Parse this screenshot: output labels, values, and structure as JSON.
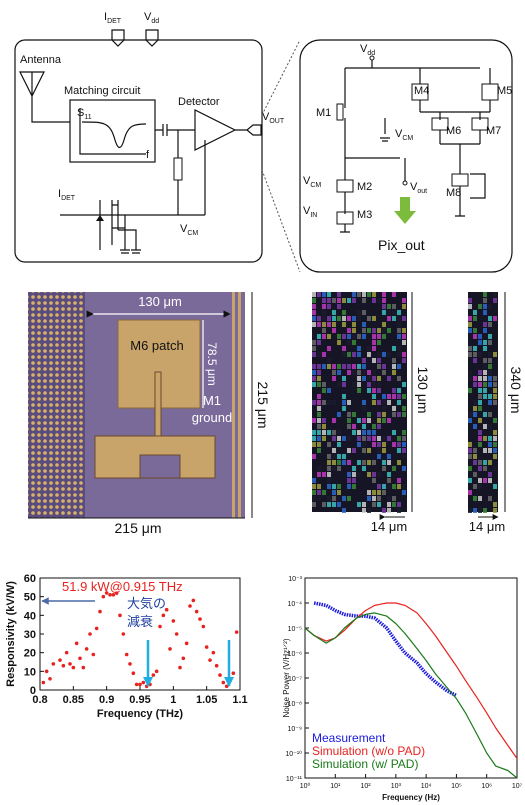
{
  "schematic": {
    "idet_top": {
      "main": "I",
      "sub": "DET"
    },
    "vdd_top": {
      "main": "V",
      "sub": "dd"
    },
    "antenna": "Antenna",
    "matching": "Matching circuit",
    "s11": {
      "main": "S",
      "sub": "11"
    },
    "f": "f",
    "detector": "Detector",
    "vout": {
      "main": "V",
      "sub": "OUT"
    },
    "idet": {
      "main": "I",
      "sub": "DET"
    },
    "vcm": {
      "main": "V",
      "sub": "CM"
    }
  },
  "pixel_circuit": {
    "vdd": {
      "main": "V",
      "sub": "dd"
    },
    "m1": "M1",
    "m4": "M4",
    "m5": "M5",
    "m6": "M6",
    "m7": "M7",
    "m8": "M8",
    "m2": "M2",
    "m3": "M3",
    "vcm_m6": {
      "main": "V",
      "sub": "CM"
    },
    "vcm_m2": {
      "main": "V",
      "sub": "CM"
    },
    "vin": {
      "main": "V",
      "sub": "IN"
    },
    "vout": {
      "main": "V",
      "sub": "out"
    },
    "pix_out": "Pix_out"
  },
  "micrograph": {
    "width_label": "130 μm",
    "height_label": "78.5 μm",
    "patch": "M6 patch",
    "ground_lines": [
      "M1",
      "ground"
    ],
    "side_label": "215 μm",
    "bottom_label": "215 μm"
  },
  "layout_views": [
    {
      "height_label": "130 μm",
      "width_label": "14 μm"
    },
    {
      "height_label": "340 μm",
      "width_label": "14 μm"
    }
  ],
  "chart_data": [
    {
      "type": "scatter",
      "x_label": "Frequency (THz)",
      "y_label": "Responsivity (kV/W)",
      "x": [
        0.805,
        0.81,
        0.815,
        0.82,
        0.83,
        0.835,
        0.84,
        0.845,
        0.85,
        0.855,
        0.86,
        0.865,
        0.87,
        0.875,
        0.88,
        0.885,
        0.89,
        0.895,
        0.9,
        0.905,
        0.91,
        0.915,
        0.92,
        0.925,
        0.93,
        0.935,
        0.94,
        0.945,
        0.95,
        0.955,
        0.96,
        0.965,
        0.97,
        0.975,
        0.98,
        0.985,
        0.99,
        0.995,
        1.0,
        1.005,
        1.01,
        1.015,
        1.02,
        1.025,
        1.03,
        1.035,
        1.04,
        1.045,
        1.05,
        1.055,
        1.06,
        1.065,
        1.07,
        1.075,
        1.08,
        1.085,
        1.09,
        1.095
      ],
      "values": [
        4,
        10,
        6,
        14,
        16,
        13,
        20,
        14,
        12,
        25,
        17,
        12,
        22,
        30,
        19,
        33,
        42,
        50,
        52,
        51,
        51,
        51.9,
        40,
        30,
        19,
        14,
        9,
        3,
        3,
        4,
        2,
        3,
        8,
        10,
        34,
        40,
        43,
        22,
        37,
        30,
        12,
        17,
        25,
        45,
        48,
        42,
        38,
        34,
        23,
        16,
        20,
        13,
        8,
        4,
        2,
        5,
        9,
        31
      ],
      "color": "#e8231f",
      "xlim": [
        0.8,
        1.1
      ],
      "ylim": [
        0,
        60
      ],
      "xticks": [
        0.8,
        0.85,
        0.9,
        0.95,
        1,
        1.05,
        1.1
      ],
      "yticks": [
        0,
        10,
        20,
        30,
        40,
        50,
        60
      ],
      "annotations": [
        {
          "lines": [
            "51.9 kW@0.915 THz"
          ],
          "color": "#e8231f"
        },
        {
          "lines": [
            "大気の",
            "減衰"
          ],
          "color": "#1f3f9f"
        }
      ]
    },
    {
      "type": "line",
      "x_label": "Frequency (Hz)",
      "y_label": "Noise Power (V/Hz¹ᐟ²)",
      "log_x": true,
      "log_y": true,
      "legend": "lower left",
      "x": [
        1,
        2,
        5,
        10,
        20,
        50,
        100,
        200,
        500,
        1000,
        2000,
        5000,
        10000,
        20000,
        50000,
        100000,
        200000,
        500000,
        1000000,
        2000000,
        5000000,
        10000000
      ],
      "series": [
        {
          "name": "Measurement",
          "color": "#1a1adc",
          "values": [
            null,
            0.0001,
            8e-05,
            5e-05,
            3.5e-05,
            3e-05,
            3e-05,
            2.5e-05,
            1e-05,
            3e-06,
            1e-06,
            4e-07,
            1.5e-07,
            7e-08,
            3e-08,
            2e-08,
            null,
            null,
            null,
            null,
            null,
            null
          ]
        },
        {
          "name": "Simulation (w/o PAD)",
          "color": "#e8231f",
          "values": [
            1e-05,
            5e-06,
            3e-06,
            4e-06,
            8e-06,
            2.5e-05,
            5e-05,
            8e-05,
            0.0001,
            0.0001,
            8e-05,
            4e-05,
            1.5e-05,
            5e-06,
            1e-06,
            3e-07,
            8e-08,
            1.5e-08,
            4e-09,
            1e-09,
            2e-10,
            6e-11
          ]
        },
        {
          "name": "Simulation (w/ PAD)",
          "color": "#1a7a1a",
          "values": [
            1e-05,
            5e-06,
            2.5e-06,
            4e-06,
            1e-05,
            2.5e-05,
            3.5e-05,
            4e-05,
            3e-05,
            1.5e-05,
            6e-06,
            1.5e-06,
            5e-07,
            1.5e-07,
            4e-08,
            1.5e-08,
            4e-09,
            5e-10,
            1e-10,
            3e-11,
            2e-11,
            1e-11
          ]
        }
      ],
      "xlim": [
        1,
        10000000
      ],
      "ylim": [
        1e-11,
        0.001
      ],
      "xticks": [
        {
          "value": 1,
          "label": "10⁰"
        },
        {
          "value": 10,
          "label": "10¹"
        },
        {
          "value": 100,
          "label": "10²"
        },
        {
          "value": 1000,
          "label": "10³"
        },
        {
          "value": 10000,
          "label": "10⁴"
        },
        {
          "value": 100000,
          "label": "10⁵"
        },
        {
          "value": 1000000,
          "label": "10⁶"
        },
        {
          "value": 10000000,
          "label": "10⁷"
        }
      ],
      "yticks": [
        {
          "value": 1e-11,
          "label": "10⁻¹¹"
        },
        {
          "value": 1e-10,
          "label": "10⁻¹⁰"
        },
        {
          "value": 1e-09,
          "label": "10⁻⁹"
        },
        {
          "value": 1e-08,
          "label": "10⁻⁸"
        },
        {
          "value": 1e-07,
          "label": "10⁻⁷"
        },
        {
          "value": 1e-06,
          "label": "10⁻⁶"
        },
        {
          "value": 1e-05,
          "label": "10⁻⁵"
        },
        {
          "value": 0.0001,
          "label": "10⁻⁴"
        },
        {
          "value": 0.001,
          "label": "10⁻³"
        }
      ]
    }
  ]
}
